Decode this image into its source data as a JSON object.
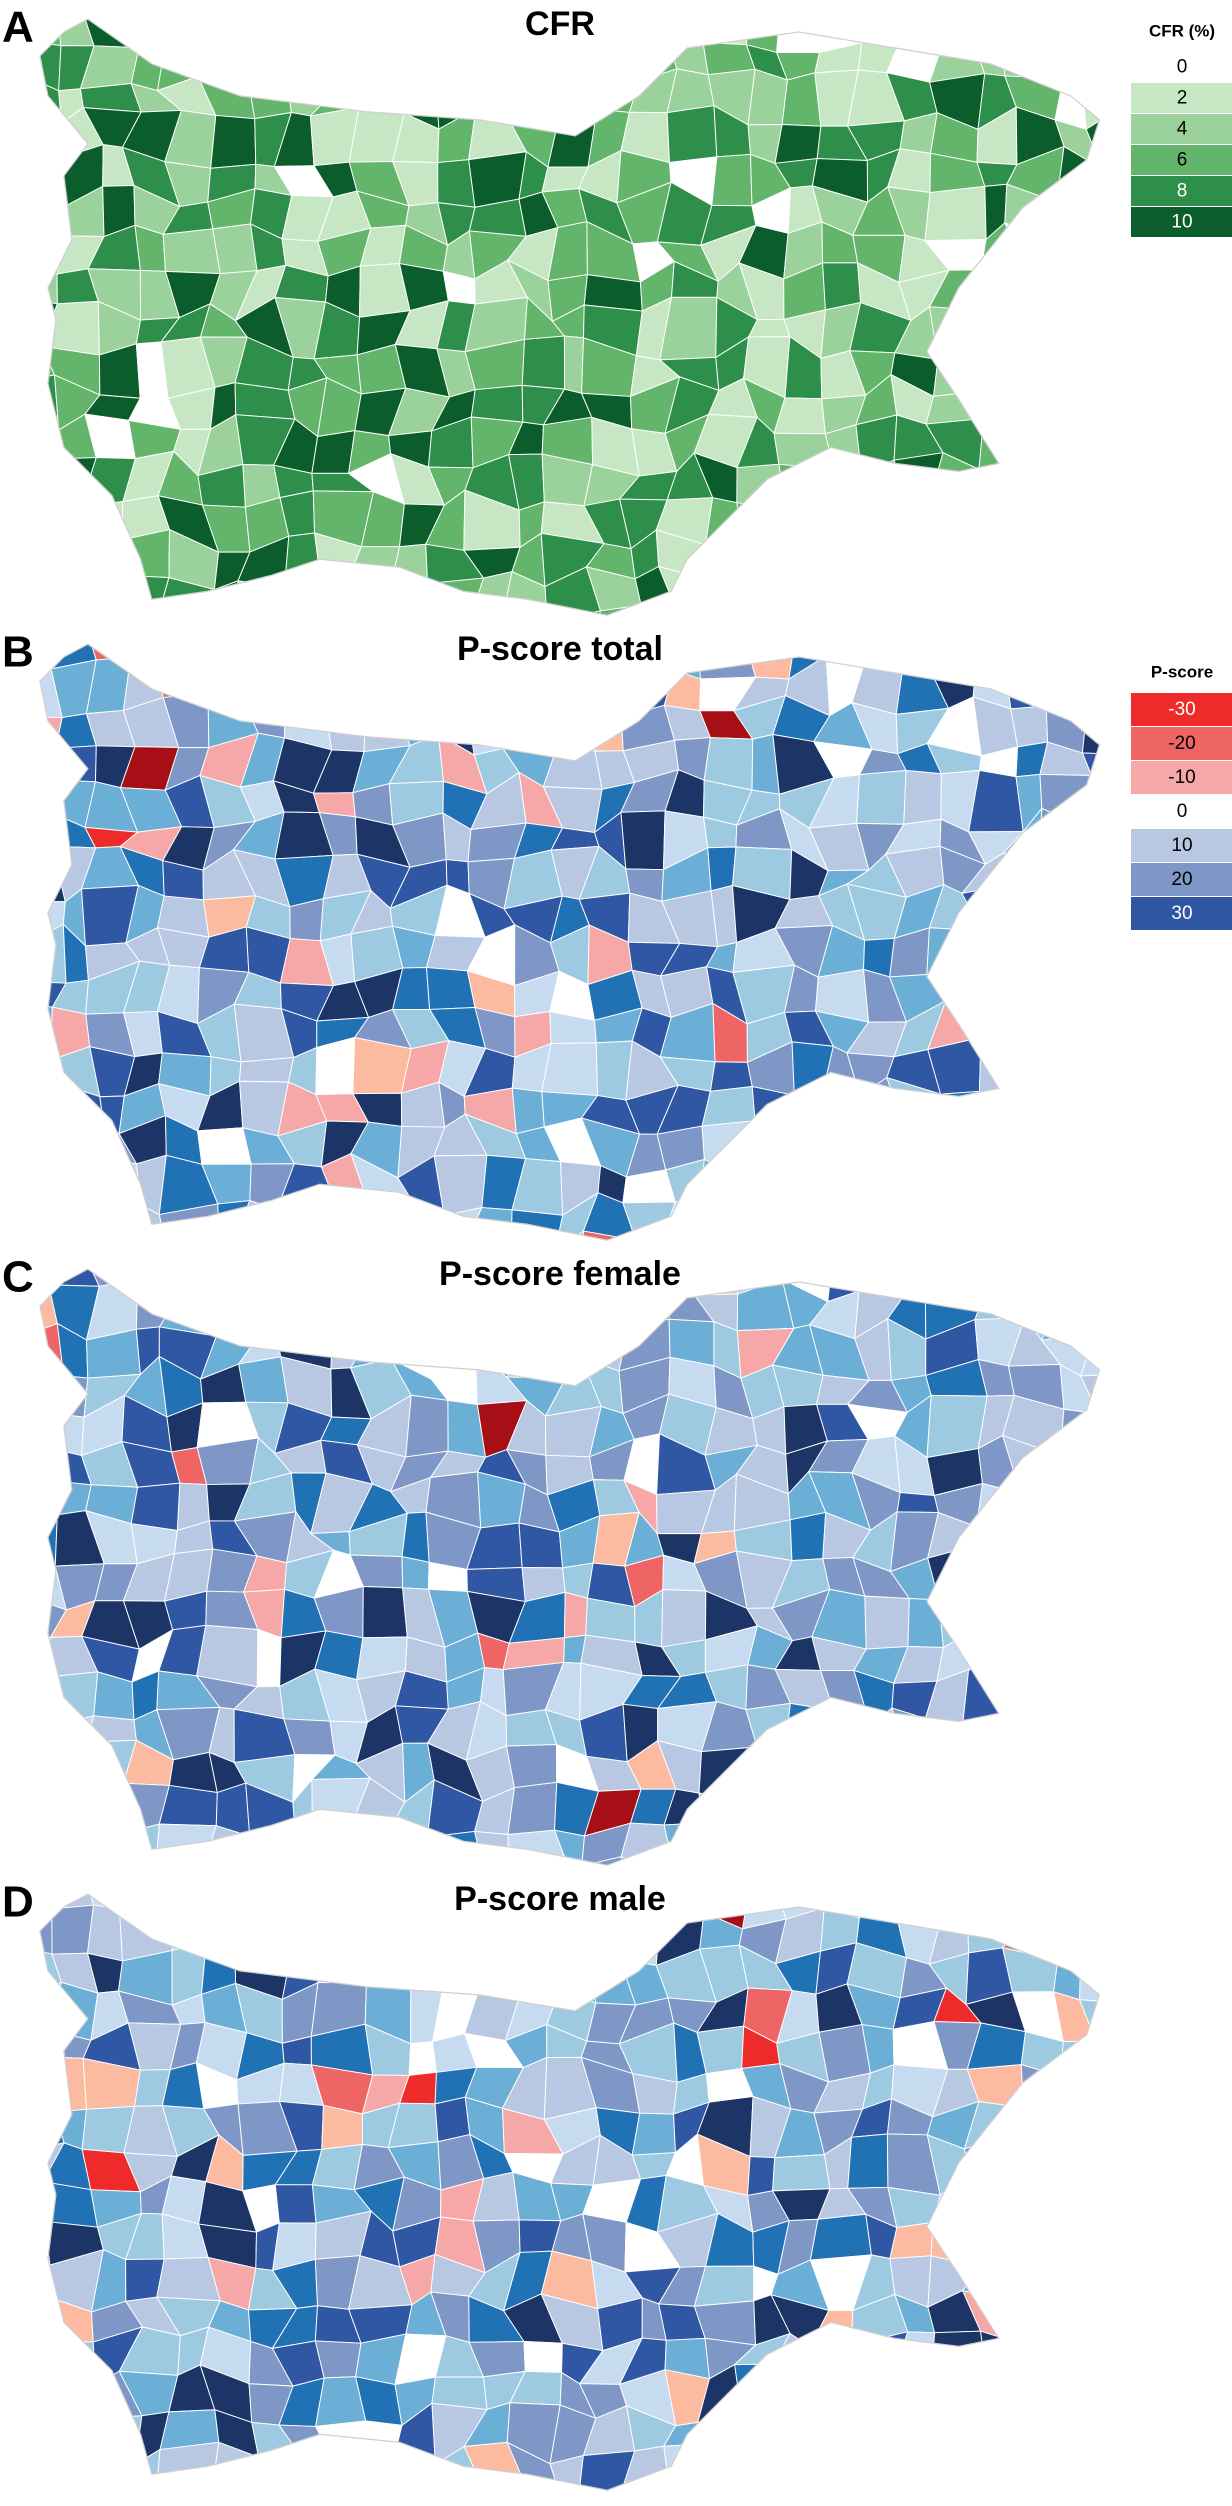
{
  "panels": [
    {
      "letter": "A",
      "title": "CFR",
      "legend": {
        "title": "CFR (%)",
        "items": [
          {
            "label": 0,
            "color": "#ffffff"
          },
          {
            "label": 2,
            "color": "#c7e7c4"
          },
          {
            "label": 4,
            "color": "#9bd19a"
          },
          {
            "label": 6,
            "color": "#63b56b"
          },
          {
            "label": 8,
            "color": "#2e8f4a"
          },
          {
            "label": 10,
            "color": "#0b5e2c"
          }
        ]
      }
    },
    {
      "letter": "B",
      "title": "P-score total",
      "legend": {
        "title": "P-score",
        "items": [
          {
            "label": -30,
            "color": "#ee2a2a"
          },
          {
            "label": -20,
            "color": "#ef6464"
          },
          {
            "label": -10,
            "color": "#f6a8a8"
          },
          {
            "label": 0,
            "color": "#ffffff"
          },
          {
            "label": 10,
            "color": "#b8c7e2"
          },
          {
            "label": 20,
            "color": "#7e97c6"
          },
          {
            "label": 30,
            "color": "#2f57a3"
          }
        ]
      }
    },
    {
      "letter": "C",
      "title": "P-score female"
    },
    {
      "letter": "D",
      "title": "P-score male"
    }
  ]
}
